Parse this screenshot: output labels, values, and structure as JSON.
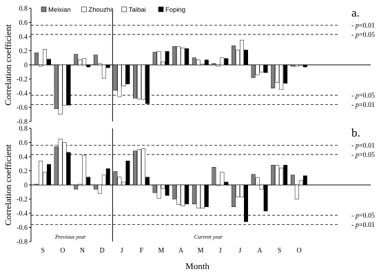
{
  "chart_data": {
    "type": "bar",
    "xlabel": "Month",
    "ylabel": "Correlation coefficient",
    "ylim": [
      -0.8,
      0.8
    ],
    "yticks": [
      -0.8,
      -0.6,
      -0.4,
      -0.2,
      0,
      0.2,
      0.4,
      0.6,
      0.8
    ],
    "yticklabels": [
      "-0.8",
      "-0.6",
      "-0.4",
      "-0.2",
      "0",
      "0.2",
      "0.4",
      "0.6",
      "0.8"
    ],
    "categories": [
      "S",
      "O",
      "N",
      "D",
      "J",
      "F",
      "M",
      "A",
      "M",
      "J",
      "J",
      "A",
      "S",
      "O"
    ],
    "legend": {
      "placement": "top-left",
      "entries": [
        {
          "name": "Meixian",
          "color": "#808080"
        },
        {
          "name": "Zhouzhi",
          "color": "#ffffff"
        },
        {
          "name": "Taibai",
          "color": "#ffffff"
        },
        {
          "name": "Foping",
          "color": "#000000"
        }
      ]
    },
    "significance_lines": [
      {
        "value": 0.56,
        "label_prefix": "p",
        "label_suffix": "=0.01"
      },
      {
        "value": 0.43,
        "label_prefix": "p",
        "label_suffix": "=0.05"
      },
      {
        "value": -0.43,
        "label_prefix": "p",
        "label_suffix": "=0.05"
      },
      {
        "value": -0.56,
        "label_prefix": "p",
        "label_suffix": "=0.01"
      }
    ],
    "divider_after_category": 3,
    "period_labels": [
      "Previous year",
      "Current year"
    ],
    "panels": [
      {
        "label": "a.",
        "series": [
          {
            "name": "Meixian",
            "values": [
              0.17,
              -0.62,
              0.15,
              0.14,
              -0.36,
              -0.47,
              0.18,
              0.26,
              0.1,
              0.02,
              0.27,
              -0.18,
              -0.33,
              -0.02
            ]
          },
          {
            "name": "Zhouzhi",
            "values": [
              -0.02,
              -0.7,
              0.07,
              0.02,
              -0.45,
              -0.48,
              0.19,
              0.26,
              0.07,
              -0.02,
              0.21,
              -0.14,
              -0.25,
              -0.02
            ]
          },
          {
            "name": "Taibai",
            "values": [
              0.22,
              -0.57,
              0.09,
              -0.19,
              -0.3,
              -0.49,
              0.04,
              0.24,
              0.01,
              0.1,
              0.35,
              -0.1,
              -0.35,
              -0.01
            ]
          },
          {
            "name": "Foping",
            "values": [
              0.08,
              -0.57,
              -0.03,
              -0.04,
              -0.27,
              -0.55,
              0.19,
              0.23,
              0.07,
              0.09,
              0.21,
              -0.11,
              -0.26,
              -0.03
            ]
          }
        ]
      },
      {
        "label": "b.",
        "series": [
          {
            "name": "Meixian",
            "values": [
              0.01,
              0.54,
              -0.06,
              -0.06,
              0.19,
              0.48,
              -0.11,
              -0.2,
              -0.27,
              0.25,
              -0.31,
              0.15,
              0.28,
              0.14
            ]
          },
          {
            "name": "Zhouzhi",
            "values": [
              0.34,
              0.65,
              0.01,
              -0.12,
              0.11,
              0.5,
              -0.19,
              -0.28,
              -0.33,
              -0.01,
              -0.17,
              0.1,
              0.28,
              -0.2
            ]
          },
          {
            "name": "Taibai",
            "values": [
              0.18,
              0.6,
              0.42,
              0.14,
              0.04,
              0.51,
              -0.05,
              -0.3,
              -0.33,
              0.18,
              -0.17,
              -0.06,
              0.24,
              0.06
            ]
          },
          {
            "name": "Foping",
            "values": [
              0.29,
              0.46,
              0.11,
              0.23,
              0.34,
              0.11,
              -0.15,
              -0.27,
              -0.31,
              0.04,
              -0.52,
              -0.37,
              0.28,
              0.13
            ]
          }
        ]
      }
    ]
  }
}
